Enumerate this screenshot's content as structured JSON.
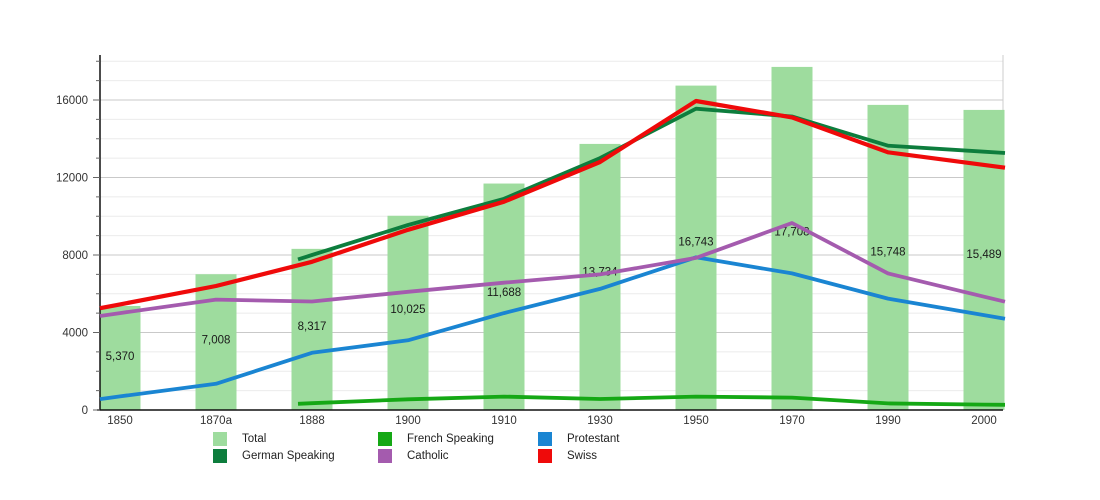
{
  "page": {
    "background": "#ffffff"
  },
  "legend": {
    "items": [
      {
        "id": "total",
        "label": "Total",
        "color": "#9edc9e"
      },
      {
        "id": "german-speaking",
        "label": "German Speaking",
        "color": "#0d7d3d"
      },
      {
        "id": "french-speaking",
        "label": "French Speaking",
        "color": "#15a815"
      },
      {
        "id": "catholic",
        "label": "Catholic",
        "color": "#a45bae"
      },
      {
        "id": "protestant",
        "label": "Protestant",
        "color": "#1a85d2"
      },
      {
        "id": "swiss",
        "label": "Swiss",
        "color": "#ef0a0a"
      }
    ]
  },
  "chart_data": {
    "type": "bar",
    "title": "",
    "xlabel": "",
    "ylabel": "",
    "categories": [
      "1850",
      "1870a",
      "1888",
      "1900",
      "1910",
      "1930",
      "1950",
      "1970",
      "1990",
      "2000"
    ],
    "bar_series": {
      "name": "Total",
      "color": "#9edc9e",
      "values": [
        5370,
        7008,
        8317,
        10025,
        11688,
        13734,
        16743,
        17708,
        15748,
        15489
      ],
      "value_labels": [
        "5,370",
        "7,008",
        "8,317",
        "10,025",
        "11,688",
        "13,734",
        "16,743",
        "17,708",
        "15,748",
        "15,489"
      ]
    },
    "line_series": [
      {
        "name": "German Speaking",
        "id": "german-speaking",
        "color": "#0d7d3d",
        "values": [
          null,
          null,
          8000,
          9550,
          10900,
          13000,
          15550,
          15150,
          13640,
          13330
        ]
      },
      {
        "name": "French Speaking",
        "id": "french-speaking",
        "color": "#15a815",
        "values": [
          null,
          null,
          350,
          550,
          690,
          570,
          690,
          640,
          340,
          280
        ]
      },
      {
        "name": "Protestant",
        "id": "protestant",
        "color": "#1a85d2",
        "values": [
          700,
          1350,
          2950,
          3600,
          5000,
          6250,
          7880,
          7050,
          5750,
          4900
        ]
      },
      {
        "name": "Catholic",
        "id": "catholic",
        "color": "#a45bae",
        "values": [
          5000,
          5700,
          5600,
          6100,
          6570,
          7000,
          7850,
          9650,
          7050,
          5850
        ]
      },
      {
        "name": "Swiss",
        "id": "swiss",
        "color": "#ef0a0a",
        "values": [
          5450,
          6400,
          7650,
          9300,
          10750,
          12800,
          15950,
          15100,
          13300,
          12650
        ]
      }
    ],
    "ylim": [
      0,
      18300
    ],
    "yticks_major": [
      0,
      4000,
      8000,
      12000,
      16000
    ],
    "ytick_labels": [
      "0",
      "4000",
      "8000",
      "12000",
      "16000"
    ],
    "ytick_minor_step": 1000,
    "grid": true,
    "legend_position": "bottom",
    "colors": {
      "axis": "#111111",
      "right_spine": "#cccccc",
      "grid_major": "#c9c9c9",
      "grid_minor": "#ebebeb",
      "tick": "#666666",
      "axis_text": "#333333",
      "bar_label_text": "#1a1a1a"
    }
  }
}
